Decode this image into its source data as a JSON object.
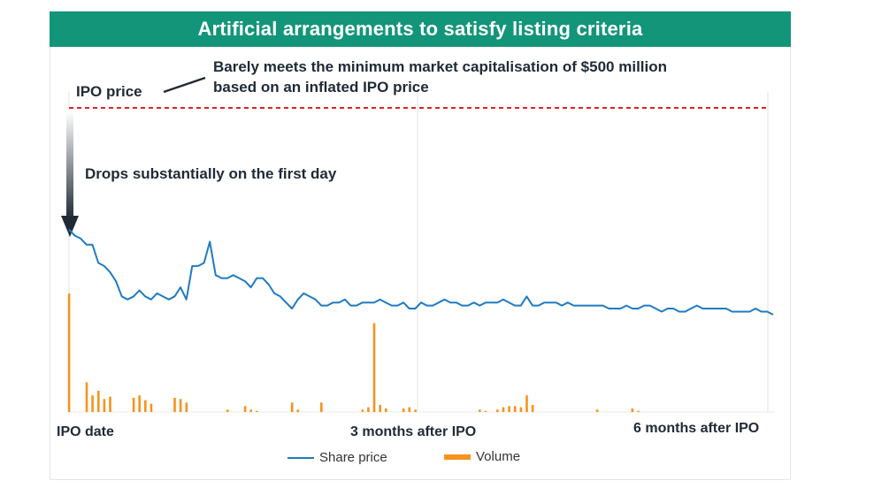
{
  "title": "Artificial arrangements to satisfy listing criteria",
  "annotations": {
    "ipo_price": "IPO price",
    "market_cap_line1": "Barely meets the minimum market capitalisation of $500 million",
    "market_cap_line2": "based on an inflated IPO price",
    "drop": "Drops substantially on the first day"
  },
  "x_labels": {
    "start": "IPO date",
    "mid": "3 months after IPO",
    "end": "6 months after IPO"
  },
  "colors": {
    "banner": "#13957a",
    "price_line": "#1f7bc2",
    "volume": "#f5931e",
    "ipo_line": "#e0202a",
    "arrow": "#1f2a36"
  },
  "chart_data": {
    "type": "line",
    "x_unit": "trading days after IPO",
    "x_range": [
      0,
      120
    ],
    "ipo_price_level": 100,
    "legend": [
      "Share price",
      "Volume"
    ],
    "legend_position": "bottom",
    "grid": "vertical gridlines at IPO date, 3 months and 6 months",
    "series": [
      {
        "name": "Share price",
        "kind": "line",
        "x": [
          0,
          1,
          2,
          3,
          4,
          5,
          6,
          7,
          8,
          9,
          10,
          11,
          12,
          13,
          14,
          15,
          16,
          17,
          18,
          19,
          20,
          21,
          22,
          23,
          24,
          25,
          26,
          27,
          28,
          29,
          30,
          31,
          32,
          33,
          34,
          35,
          36,
          37,
          38,
          39,
          40,
          41,
          42,
          43,
          44,
          45,
          46,
          47,
          48,
          49,
          50,
          51,
          52,
          53,
          54,
          55,
          56,
          57,
          58,
          59,
          60,
          61,
          62,
          63,
          64,
          65,
          66,
          67,
          68,
          69,
          70,
          71,
          72,
          73,
          74,
          75,
          76,
          77,
          78,
          79,
          80,
          81,
          82,
          83,
          84,
          85,
          86,
          87,
          88,
          89,
          90,
          91,
          92,
          93,
          94,
          95,
          96,
          97,
          98,
          99,
          100,
          101,
          102,
          103,
          104,
          105,
          106,
          107,
          108,
          109,
          110,
          111,
          112,
          113,
          114,
          115,
          116,
          117,
          118,
          119,
          120
        ],
        "values": [
          60,
          58,
          57,
          55,
          55,
          49,
          48,
          46,
          43,
          38,
          37,
          38,
          40,
          38,
          37,
          39,
          38,
          37,
          38,
          41,
          37,
          48,
          48,
          49,
          56,
          45,
          44,
          44,
          45,
          44,
          43,
          41,
          44,
          44,
          42,
          39,
          38,
          36,
          34,
          37,
          39,
          38,
          37,
          35,
          35,
          36,
          36,
          37,
          35,
          35,
          36,
          36,
          36,
          37,
          36,
          35,
          35,
          36,
          34,
          34,
          36,
          35,
          35,
          36,
          37,
          36,
          36,
          35,
          35,
          36,
          35,
          36,
          36,
          36,
          37,
          36,
          35,
          35,
          38,
          35,
          35,
          36,
          36,
          36,
          35,
          36,
          35,
          35,
          35,
          35,
          35,
          35,
          34,
          34,
          34,
          35,
          34,
          34,
          35,
          35,
          34,
          33,
          34,
          34,
          33,
          33,
          34,
          35,
          34,
          34,
          34,
          34,
          34,
          33,
          33,
          33,
          33,
          34,
          33,
          33,
          32
        ],
        "unit": "% of IPO price"
      },
      {
        "name": "Volume",
        "kind": "bar",
        "values": [
          100,
          0,
          0,
          25,
          14,
          18,
          11,
          13,
          0,
          0,
          0,
          12,
          14,
          10,
          7,
          0,
          0,
          0,
          12,
          11,
          8,
          0,
          0,
          0,
          0,
          0,
          0,
          2,
          0,
          0,
          5,
          2,
          1,
          0,
          0,
          0,
          0,
          0,
          8,
          2,
          0,
          0,
          0,
          8,
          0,
          0,
          0,
          0,
          0,
          0,
          2,
          4,
          75,
          6,
          3,
          0,
          0,
          3,
          4,
          2,
          0,
          0,
          0,
          0,
          0,
          0,
          0,
          0,
          0,
          0,
          2,
          1,
          0,
          2,
          4,
          5,
          5,
          4,
          14,
          6,
          0,
          0,
          0,
          0,
          0,
          0,
          0,
          0,
          0,
          0,
          2,
          0,
          0,
          0,
          0,
          0,
          3,
          1,
          0,
          0,
          0,
          0,
          0,
          0,
          0,
          0,
          0,
          0,
          0,
          0,
          0,
          0,
          0,
          0,
          0,
          0,
          0,
          0,
          0,
          0,
          0
        ],
        "unit": "relative"
      }
    ]
  }
}
